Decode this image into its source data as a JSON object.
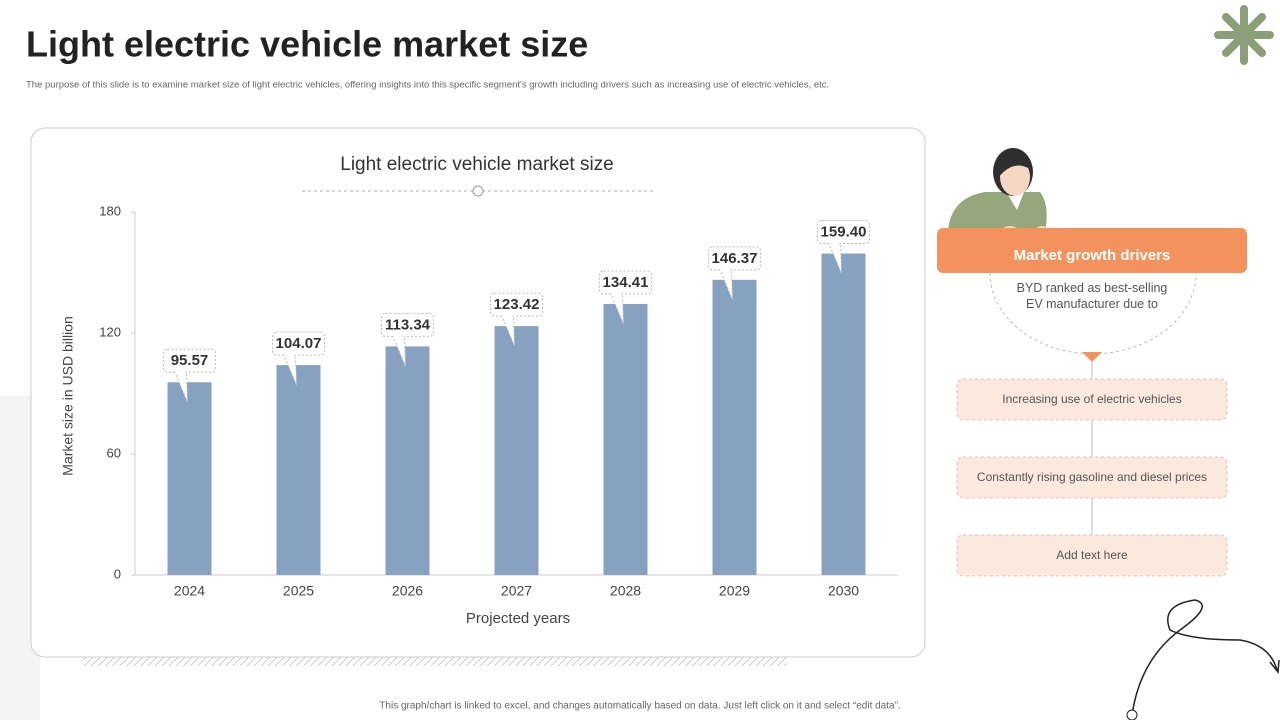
{
  "title": "Light electric vehicle market size",
  "subtitle": "The purpose of this slide is to examine market size of light electric vehicles, offering insights into this specific segment's growth including drivers such as increasing use of electric vehicles, etc.",
  "chart_data": {
    "type": "bar",
    "title": "Light electric vehicle market size",
    "x_label": "Projected years",
    "y_label": "Market size in USD billion",
    "categories": [
      "2024",
      "2025",
      "2026",
      "2027",
      "2028",
      "2029",
      "2030"
    ],
    "values": [
      95.57,
      104.07,
      113.34,
      123.42,
      134.41,
      146.37,
      159.4
    ],
    "value_labels": [
      "95.57",
      "104.07",
      "113.34",
      "123.42",
      "134.41",
      "146.37",
      "159.40"
    ],
    "color": "#87a2c1",
    "ylim": [
      0,
      180
    ],
    "yticks": [
      0,
      60,
      120,
      180
    ]
  },
  "drivers": {
    "heading": "Market growth drivers",
    "intro": "BYD ranked as best-selling EV manufacturer due to",
    "items": [
      "Increasing use of electric vehicles",
      "Constantly rising gasoline and diesel prices",
      "Add text here"
    ]
  },
  "footnote": "This graph/chart is linked to excel, and changes automatically based on data. Just left click on it and select “edit data”."
}
